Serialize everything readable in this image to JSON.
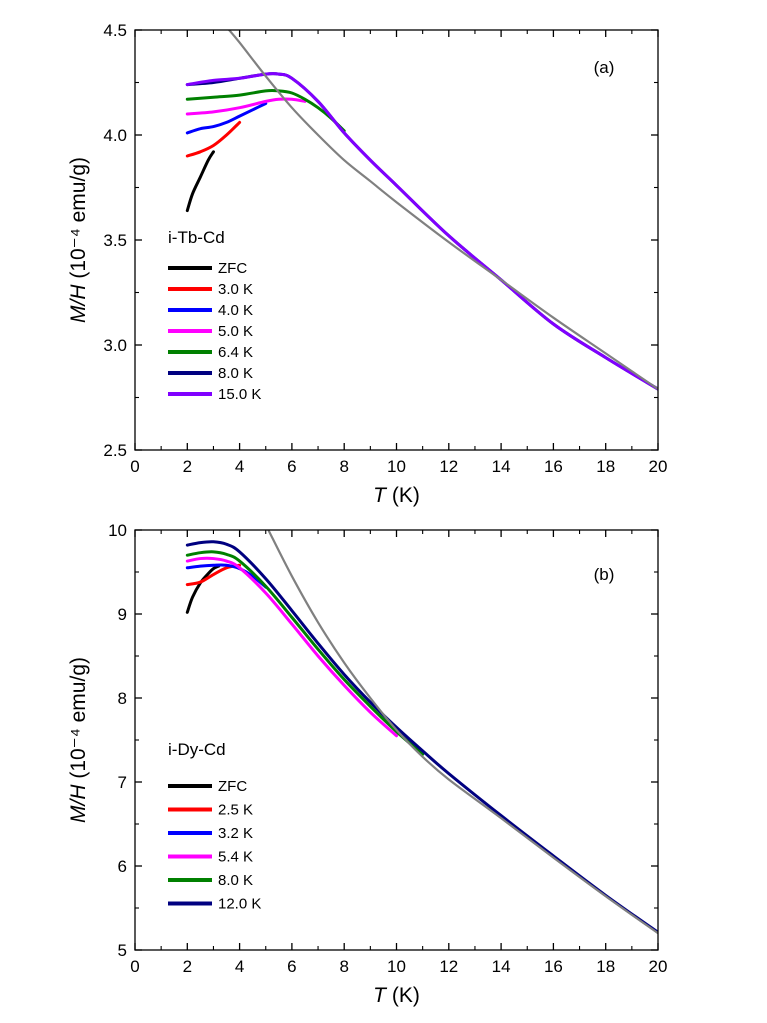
{
  "chart_data": [
    {
      "type": "line",
      "panel": "(a)",
      "legend_title": "i-Tb-Cd",
      "xlabel": "T (K)",
      "xlabel_italic": "T",
      "xlabel_unit": " (K)",
      "ylabel_italic": "M/H",
      "ylabel_unit": " (10⁻⁴ emu/g)",
      "xlim": [
        0,
        20
      ],
      "ylim": [
        2.5,
        4.5
      ],
      "xticks": [
        "0",
        "2",
        "4",
        "6",
        "8",
        "10",
        "12",
        "14",
        "16",
        "18",
        "20"
      ],
      "yticks": [
        "2.5",
        "3.0",
        "3.5",
        "4.0",
        "4.5"
      ],
      "series": [
        {
          "name": "ZFC",
          "color": "#000000",
          "x": [
            2.0,
            2.2,
            2.5,
            2.8,
            3.0
          ],
          "y": [
            3.64,
            3.72,
            3.8,
            3.88,
            3.92
          ]
        },
        {
          "name": "3.0 K",
          "color": "#ff0000",
          "x": [
            2.0,
            2.5,
            3.0,
            3.5,
            4.0
          ],
          "y": [
            3.9,
            3.92,
            3.95,
            4.0,
            4.06
          ]
        },
        {
          "name": "4.0 K",
          "color": "#0000ff",
          "x": [
            2.0,
            2.5,
            3.0,
            3.5,
            4.0,
            4.5,
            5.0
          ],
          "y": [
            4.01,
            4.03,
            4.04,
            4.06,
            4.09,
            4.12,
            4.15
          ]
        },
        {
          "name": "5.0 K",
          "color": "#ff00ff",
          "x": [
            2.0,
            3.0,
            4.0,
            5.0,
            5.5,
            6.0,
            6.5
          ],
          "y": [
            4.1,
            4.11,
            4.13,
            4.16,
            4.17,
            4.17,
            4.16
          ]
        },
        {
          "name": "6.4 K",
          "color": "#008000",
          "x": [
            2.0,
            3.0,
            4.0,
            5.0,
            5.5,
            6.0,
            6.5,
            7.0,
            7.5,
            8.0
          ],
          "y": [
            4.17,
            4.18,
            4.19,
            4.21,
            4.21,
            4.2,
            4.17,
            4.13,
            4.08,
            4.02
          ]
        },
        {
          "name": "8.0 K",
          "color": "#000080",
          "x": [
            2.0,
            3.0,
            4.0,
            5.0,
            5.5,
            6.0,
            7.0,
            8.0,
            9.0,
            10.0,
            12.0,
            14.0,
            16.0,
            18.0,
            20.0
          ],
          "y": [
            4.24,
            4.25,
            4.27,
            4.29,
            4.29,
            4.27,
            4.16,
            4.01,
            3.88,
            3.76,
            3.52,
            3.31,
            3.1,
            2.94,
            2.79
          ]
        },
        {
          "name": "15.0 K",
          "color": "#8000ff",
          "x": [
            2.0,
            3.0,
            4.0,
            5.0,
            5.5,
            6.0,
            7.0,
            8.0,
            9.0,
            10.0,
            12.0,
            14.0,
            16.0,
            18.0,
            20.0
          ],
          "y": [
            4.24,
            4.26,
            4.27,
            4.29,
            4.29,
            4.27,
            4.16,
            4.01,
            3.88,
            3.76,
            3.52,
            3.31,
            3.1,
            2.94,
            2.79
          ]
        },
        {
          "name": "fit",
          "color": "#808080",
          "legend": false,
          "x": [
            3.6,
            4.0,
            5.0,
            6.0,
            7.0,
            8.0,
            9.0,
            10.0,
            12.0,
            14.0,
            16.0,
            18.0,
            20.0
          ],
          "y": [
            4.5,
            4.44,
            4.28,
            4.13,
            4.0,
            3.88,
            3.78,
            3.68,
            3.49,
            3.31,
            3.13,
            2.96,
            2.79
          ]
        }
      ]
    },
    {
      "type": "line",
      "panel": "(b)",
      "legend_title": "i-Dy-Cd",
      "xlabel": "T (K)",
      "xlabel_italic": "T",
      "xlabel_unit": " (K)",
      "ylabel_italic": "M/H",
      "ylabel_unit": " (10⁻⁴ emu/g)",
      "xlim": [
        0,
        20
      ],
      "ylim": [
        5,
        10
      ],
      "xticks": [
        "0",
        "2",
        "4",
        "6",
        "8",
        "10",
        "12",
        "14",
        "16",
        "18",
        "20"
      ],
      "yticks": [
        "5",
        "6",
        "7",
        "8",
        "9",
        "10"
      ],
      "series": [
        {
          "name": "ZFC",
          "color": "#000000",
          "x": [
            2.0,
            2.2,
            2.5,
            2.8,
            3.0,
            3.2
          ],
          "y": [
            9.02,
            9.2,
            9.37,
            9.48,
            9.54,
            9.57
          ]
        },
        {
          "name": "2.5 K",
          "color": "#ff0000",
          "x": [
            2.0,
            2.5,
            3.0,
            3.5,
            4.0
          ],
          "y": [
            9.35,
            9.38,
            9.47,
            9.55,
            9.58
          ]
        },
        {
          "name": "3.2 K",
          "color": "#0000ff",
          "x": [
            2.0,
            2.5,
            3.0,
            3.5,
            4.0,
            4.5,
            5.0
          ],
          "y": [
            9.55,
            9.57,
            9.58,
            9.58,
            9.54,
            9.45,
            9.32
          ]
        },
        {
          "name": "5.4 K",
          "color": "#ff00ff",
          "x": [
            2.0,
            2.5,
            3.0,
            3.5,
            4.0,
            5.0,
            6.0,
            7.0,
            8.0,
            9.0,
            10.0
          ],
          "y": [
            9.63,
            9.66,
            9.66,
            9.63,
            9.55,
            9.25,
            8.88,
            8.5,
            8.15,
            7.83,
            7.55
          ]
        },
        {
          "name": "8.0 K",
          "color": "#008000",
          "x": [
            2.0,
            2.5,
            3.0,
            3.5,
            4.0,
            5.0,
            6.0,
            7.0,
            8.0,
            9.0,
            10.0,
            11.0
          ],
          "y": [
            9.7,
            9.73,
            9.74,
            9.71,
            9.63,
            9.33,
            8.96,
            8.58,
            8.22,
            7.9,
            7.6,
            7.33
          ]
        },
        {
          "name": "12.0 K",
          "color": "#000080",
          "x": [
            2.0,
            2.5,
            3.0,
            3.5,
            4.0,
            5.0,
            6.0,
            7.0,
            8.0,
            9.0,
            10.0,
            11.0,
            12.0,
            14.0,
            16.0,
            18.0,
            20.0
          ],
          "y": [
            9.82,
            9.85,
            9.86,
            9.83,
            9.74,
            9.42,
            9.04,
            8.65,
            8.28,
            7.95,
            7.65,
            7.37,
            7.1,
            6.6,
            6.12,
            5.65,
            5.21
          ]
        },
        {
          "name": "fit",
          "color": "#808080",
          "legend": false,
          "x": [
            5.1,
            6.0,
            7.0,
            8.0,
            9.0,
            10.0,
            11.0,
            12.0,
            14.0,
            16.0,
            18.0,
            20.0
          ],
          "y": [
            10.0,
            9.45,
            8.9,
            8.42,
            8.0,
            7.62,
            7.3,
            7.03,
            6.57,
            6.1,
            5.64,
            5.2
          ]
        }
      ]
    }
  ]
}
